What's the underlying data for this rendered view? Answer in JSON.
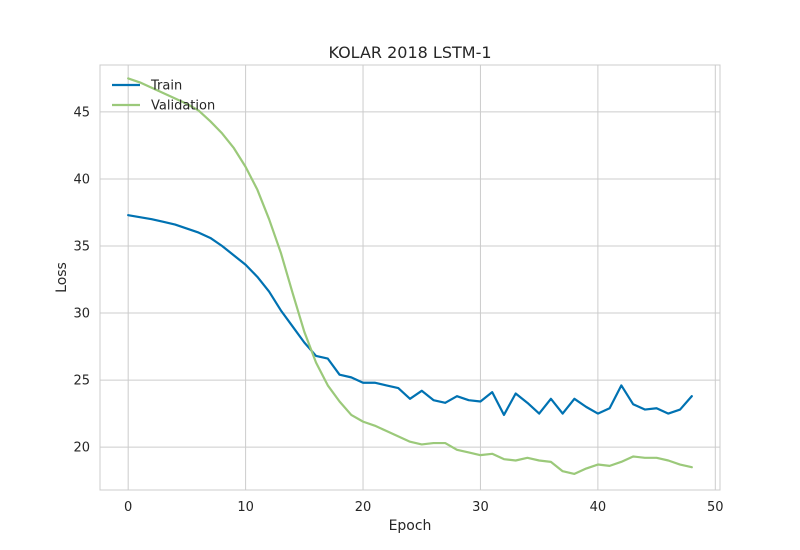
{
  "chart_data": {
    "type": "line",
    "title": "KOLAR 2018 LSTM-1",
    "xlabel": "Epoch",
    "ylabel": "Loss",
    "xlim": [
      -2.4,
      50.4
    ],
    "ylim": [
      16.8,
      48.5
    ],
    "xticks": [
      0,
      10,
      20,
      30,
      40,
      50
    ],
    "yticks": [
      20,
      25,
      30,
      35,
      40,
      45
    ],
    "grid": true,
    "legend_position": "top-left",
    "colors": {
      "Train": "#0072b2",
      "Validation": "#9bc97a"
    },
    "x": [
      0,
      1,
      2,
      3,
      4,
      5,
      6,
      7,
      8,
      9,
      10,
      11,
      12,
      13,
      14,
      15,
      16,
      17,
      18,
      19,
      20,
      21,
      22,
      23,
      24,
      25,
      26,
      27,
      28,
      29,
      30,
      31,
      32,
      33,
      34,
      35,
      36,
      37,
      38,
      39,
      40,
      41,
      42,
      43,
      44,
      45,
      46,
      47,
      48
    ],
    "series": [
      {
        "name": "Train",
        "values": [
          37.3,
          37.15,
          37.0,
          36.8,
          36.6,
          36.3,
          36.0,
          35.6,
          35.0,
          34.3,
          33.6,
          32.7,
          31.6,
          30.2,
          29.0,
          27.8,
          26.8,
          26.6,
          25.4,
          25.2,
          24.8,
          24.8,
          24.6,
          24.4,
          23.6,
          24.2,
          23.5,
          23.3,
          23.8,
          23.5,
          23.4,
          24.1,
          22.4,
          24.0,
          23.3,
          22.5,
          23.6,
          22.5,
          23.6,
          23.0,
          22.5,
          22.9,
          24.6,
          23.2,
          22.8,
          22.9,
          22.5,
          22.8,
          23.8
        ]
      },
      {
        "name": "Validation",
        "values": [
          47.5,
          47.2,
          46.8,
          46.4,
          46.0,
          45.6,
          45.1,
          44.3,
          43.4,
          42.3,
          40.9,
          39.2,
          37.0,
          34.5,
          31.5,
          28.6,
          26.3,
          24.6,
          23.4,
          22.4,
          21.9,
          21.6,
          21.2,
          20.8,
          20.4,
          20.2,
          20.3,
          20.3,
          19.8,
          19.6,
          19.4,
          19.5,
          19.1,
          19.0,
          19.2,
          19.0,
          18.9,
          18.2,
          18.0,
          18.4,
          18.7,
          18.6,
          18.9,
          19.3,
          19.2,
          19.2,
          19.0,
          18.7,
          18.5
        ]
      }
    ]
  }
}
